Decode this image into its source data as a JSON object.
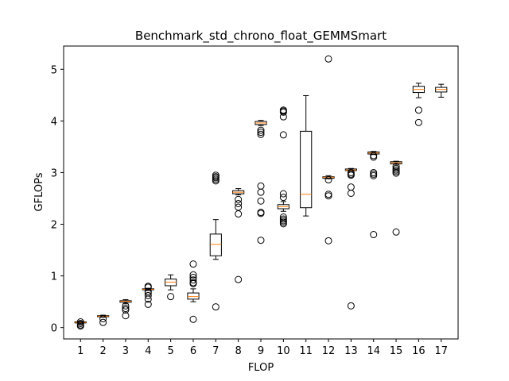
{
  "chart_data": {
    "type": "box",
    "title": "Benchmark_std_chrono_float_GEMMSmart",
    "xlabel": "FLOP",
    "ylabel": "GFLOPs",
    "ylim": [
      -0.22,
      5.45
    ],
    "yticks": [
      0,
      1,
      2,
      3,
      4,
      5
    ],
    "categories": [
      "1",
      "2",
      "3",
      "4",
      "5",
      "6",
      "7",
      "8",
      "9",
      "10",
      "11",
      "12",
      "13",
      "14",
      "15",
      "16",
      "17"
    ],
    "colors": {
      "box": "#000000",
      "median": "#ff7f0e"
    },
    "boxes": [
      {
        "category": "1",
        "whisker_low": 0.07,
        "q1": 0.09,
        "median": 0.1,
        "q3": 0.11,
        "whisker_high": 0.12,
        "fliers": [
          0.05,
          0.03,
          0.08,
          0.11
        ]
      },
      {
        "category": "2",
        "whisker_low": 0.2,
        "q1": 0.21,
        "median": 0.22,
        "q3": 0.23,
        "whisker_high": 0.24,
        "fliers": [
          0.17,
          0.1
        ]
      },
      {
        "category": "3",
        "whisker_low": 0.46,
        "q1": 0.49,
        "median": 0.51,
        "q3": 0.52,
        "whisker_high": 0.54,
        "fliers": [
          0.42,
          0.37,
          0.34,
          0.23
        ]
      },
      {
        "category": "4",
        "whisker_low": 0.72,
        "q1": 0.73,
        "median": 0.74,
        "q3": 0.75,
        "whisker_high": 0.76,
        "fliers": [
          0.78,
          0.8,
          0.7,
          0.67,
          0.62,
          0.55,
          0.45
        ]
      },
      {
        "category": "5",
        "whisker_low": 0.73,
        "q1": 0.81,
        "median": 0.88,
        "q3": 0.94,
        "whisker_high": 1.02,
        "fliers": [
          0.6
        ]
      },
      {
        "category": "6",
        "whisker_low": 0.5,
        "q1": 0.55,
        "median": 0.6,
        "q3": 0.67,
        "whisker_high": 0.75,
        "fliers": [
          1.23,
          1.02,
          0.97,
          0.92,
          0.87,
          0.85,
          0.16
        ]
      },
      {
        "category": "7",
        "whisker_low": 1.32,
        "q1": 1.39,
        "median": 1.61,
        "q3": 1.81,
        "whisker_high": 2.09,
        "fliers": [
          2.95,
          2.92,
          2.9,
          2.87,
          2.84,
          0.4
        ]
      },
      {
        "category": "8",
        "whisker_low": 2.57,
        "q1": 2.59,
        "median": 2.62,
        "q3": 2.65,
        "whisker_high": 2.69,
        "fliers": [
          2.48,
          2.4,
          2.33,
          2.2,
          0.93
        ]
      },
      {
        "category": "9",
        "whisker_low": 3.91,
        "q1": 3.93,
        "median": 3.96,
        "q3": 3.99,
        "whisker_high": 4.01,
        "fliers": [
          3.82,
          3.78,
          3.74,
          2.74,
          2.62,
          2.45,
          2.23,
          2.21,
          1.69
        ]
      },
      {
        "category": "10",
        "whisker_low": 2.25,
        "q1": 2.3,
        "median": 2.34,
        "q3": 2.38,
        "whisker_high": 2.44,
        "fliers": [
          4.21,
          4.19,
          4.17,
          4.08,
          3.73,
          2.59,
          2.52,
          2.14,
          2.1,
          2.07,
          2.04,
          2.01
        ]
      },
      {
        "category": "11",
        "whisker_low": 2.16,
        "q1": 2.32,
        "median": 2.58,
        "q3": 3.8,
        "whisker_high": 4.49,
        "fliers": []
      },
      {
        "category": "12",
        "whisker_low": 2.88,
        "q1": 2.89,
        "median": 2.91,
        "q3": 2.92,
        "whisker_high": 2.94,
        "fliers": [
          5.2,
          2.86,
          2.58,
          2.55,
          1.68
        ]
      },
      {
        "category": "13",
        "whisker_low": 3.03,
        "q1": 3.04,
        "median": 3.05,
        "q3": 3.07,
        "whisker_high": 3.08,
        "fliers": [
          3.0,
          2.97,
          2.95,
          2.72,
          2.6,
          0.42
        ]
      },
      {
        "category": "14",
        "whisker_low": 3.35,
        "q1": 3.36,
        "median": 3.38,
        "q3": 3.4,
        "whisker_high": 3.41,
        "fliers": [
          3.33,
          3.3,
          3.0,
          2.97,
          2.94,
          1.8
        ]
      },
      {
        "category": "15",
        "whisker_low": 3.16,
        "q1": 3.17,
        "median": 3.19,
        "q3": 3.21,
        "whisker_high": 3.22,
        "fliers": [
          3.12,
          3.08,
          3.05,
          3.02,
          2.99,
          1.85
        ]
      },
      {
        "category": "16",
        "whisker_low": 4.45,
        "q1": 4.55,
        "median": 4.61,
        "q3": 4.67,
        "whisker_high": 4.73,
        "fliers": [
          4.21,
          3.97
        ]
      },
      {
        "category": "17",
        "whisker_low": 4.46,
        "q1": 4.56,
        "median": 4.61,
        "q3": 4.65,
        "whisker_high": 4.71,
        "fliers": []
      }
    ]
  }
}
